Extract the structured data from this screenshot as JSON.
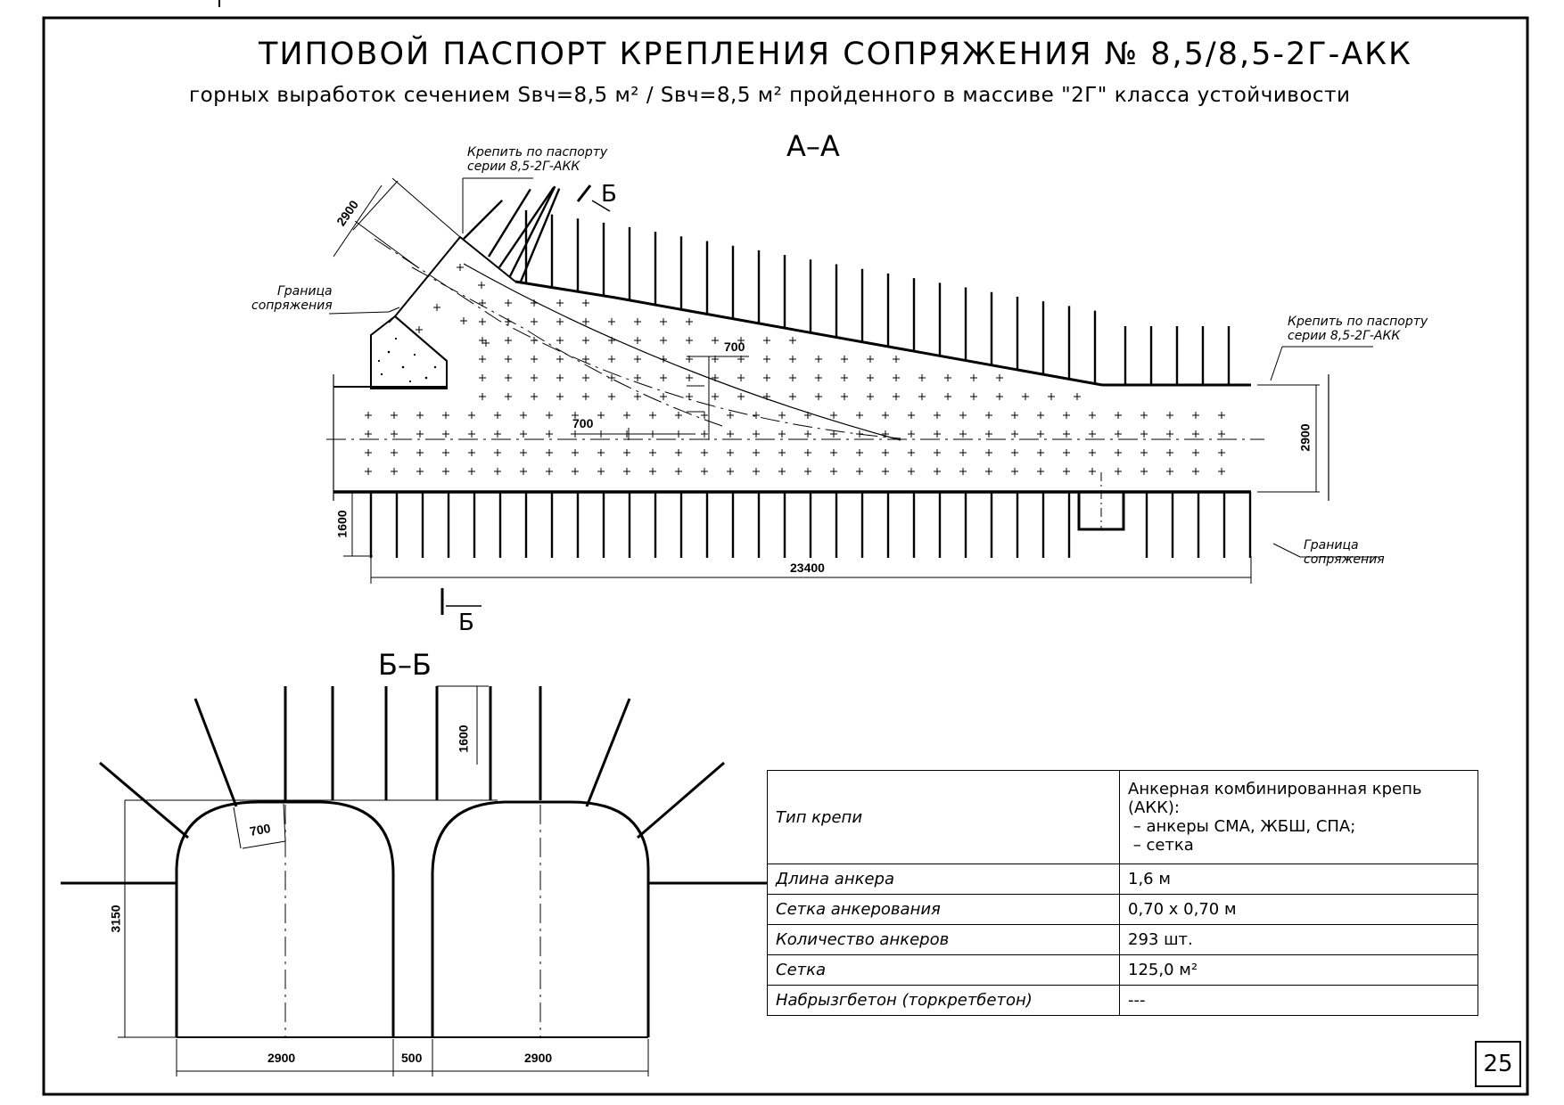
{
  "title": "ТИПОВОЙ ПАСПОРТ КРЕПЛЕНИЯ СОПРЯЖЕНИЯ № 8,5/8,5-2Г-АКК",
  "subtitle": "горных выработок сечением Sвч=8,5 м² / Sвч=8,5 м² пройденного в массиве \"2Г\" класса устойчивости",
  "page_number": "25",
  "section_aa": {
    "label": "А–А",
    "note_top": [
      "Крепить по паспорту",
      "серии 8,5-2Г-АКК"
    ],
    "note_right": [
      "Крепить по паспорту",
      "серии 8,5-2Г-АКК"
    ],
    "boundary_left": [
      "Граница",
      "сопряжения"
    ],
    "boundary_right": [
      "Граница",
      "сопряжения"
    ],
    "cut_mark": "Б",
    "dims": {
      "branch_width": "2900",
      "spacing_upper": "700",
      "spacing_lower": "700",
      "height": "2900",
      "anchor_length": "1600",
      "total_length": "23400"
    }
  },
  "section_bb": {
    "label": "Б–Б",
    "dims": {
      "anchor_length": "1600",
      "spacing": "700",
      "height": "3150",
      "width_left": "2900",
      "pillar": "500",
      "width_right": "2900"
    }
  },
  "spec_table": [
    {
      "key": "Тип крепи",
      "value": [
        "Анкерная комбинированная крепь (АКК):",
        " – анкеры СМА, ЖБШ, СПА;",
        " – сетка"
      ]
    },
    {
      "key": "Длина анкера",
      "value": [
        "1,6 м"
      ]
    },
    {
      "key": "Сетка анкерования",
      "value": [
        "0,70 х 0,70 м"
      ]
    },
    {
      "key": "Количество анкеров",
      "value": [
        "293 шт."
      ]
    },
    {
      "key": "Сетка",
      "value": [
        "125,0 м²"
      ]
    },
    {
      "key": "Набрызгбетон (торкретбетон)",
      "value": [
        "---"
      ]
    }
  ]
}
